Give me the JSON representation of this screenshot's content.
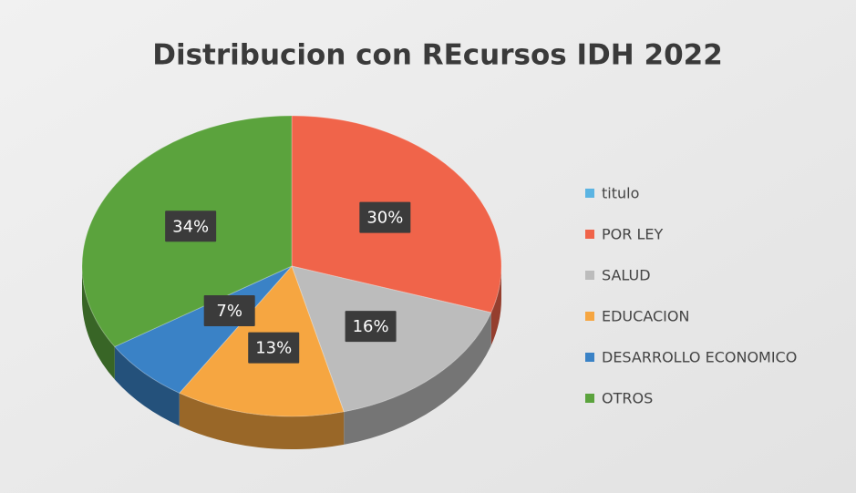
{
  "chart_data": {
    "type": "pie",
    "title": "Distribucion con REcursos IDH 2022",
    "categories": [
      "titulo",
      "POR LEY",
      "SALUD",
      "EDUCACION",
      "DESARROLLO ECONOMICO",
      "OTROS"
    ],
    "values": [
      0,
      30,
      16,
      13,
      7,
      34
    ],
    "value_labels": [
      null,
      "30%",
      "16%",
      "13%",
      "7%",
      "34%"
    ],
    "colors": [
      "#5bb4e2",
      "#f0644a",
      "#bcbcbc",
      "#f6a641",
      "#3a82c6",
      "#5ba33d"
    ],
    "legend": "right"
  }
}
